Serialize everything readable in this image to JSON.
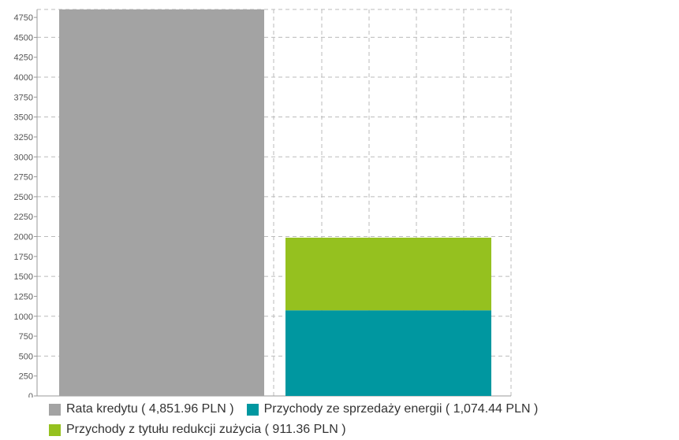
{
  "chart_data": {
    "type": "bar",
    "stacked": true,
    "categories": [
      "",
      ""
    ],
    "ylim": [
      0,
      4850
    ],
    "yticks": [
      0,
      250,
      500,
      750,
      1000,
      1250,
      1500,
      1750,
      2000,
      2250,
      2500,
      2750,
      3000,
      3250,
      3500,
      3750,
      4000,
      4250,
      4500,
      4750
    ],
    "grid": true,
    "legend_position": "bottom",
    "series": [
      {
        "name": "Rata kredytu",
        "color": "#a3a3a3",
        "values": [
          4851.96,
          0
        ],
        "legend_label": "Rata kredytu ( 4,851.96 PLN )"
      },
      {
        "name": "Przychody ze sprzedaży energii",
        "color": "#0097a0",
        "values": [
          0,
          1074.44
        ],
        "legend_label": "Przychody ze sprzedaży energii ( 1,074.44 PLN )"
      },
      {
        "name": "Przychody z tytułu redukcji zużycia",
        "color": "#95c11f",
        "values": [
          0,
          911.36
        ],
        "legend_label": "Przychody z tytułu redukcji zużycia ( 911.36 PLN )"
      }
    ]
  }
}
